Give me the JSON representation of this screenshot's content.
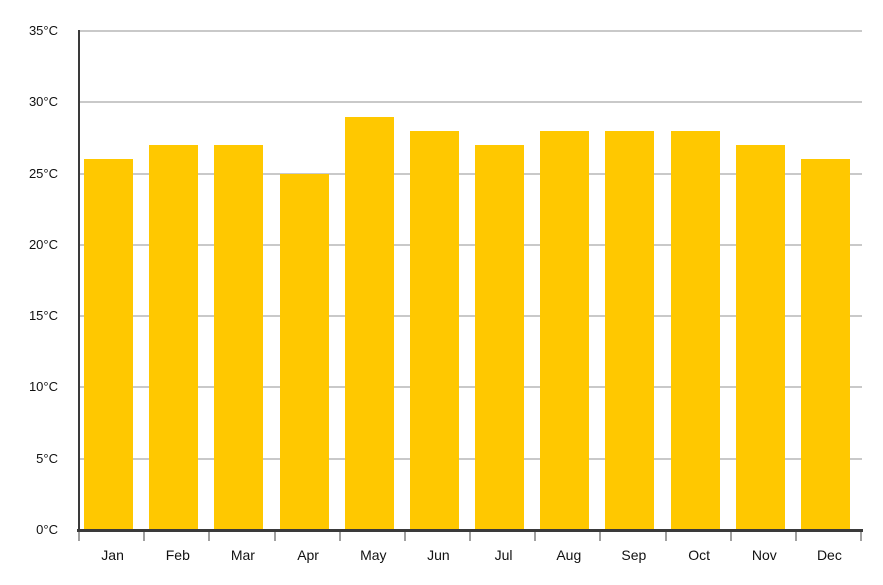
{
  "chart_data": {
    "type": "bar",
    "title": "",
    "xlabel": "",
    "ylabel": "",
    "unit": "°C",
    "categories": [
      "Jan",
      "Feb",
      "Mar",
      "Apr",
      "May",
      "Jun",
      "Jul",
      "Aug",
      "Sep",
      "Oct",
      "Nov",
      "Dec"
    ],
    "values": [
      26,
      27,
      27,
      25,
      29,
      28,
      27,
      28,
      28,
      28,
      27,
      26
    ],
    "ylim": [
      0,
      35
    ],
    "ytick_step": 5,
    "ytick_labels": [
      "0°C",
      "5°C",
      "10°C",
      "15°C",
      "20°C",
      "25°C",
      "30°C",
      "35°C"
    ],
    "grid": true,
    "legend": false
  },
  "colors": {
    "bar": "#FFC800",
    "gridline": "#C9C9C9",
    "axis": "#3A3A3A",
    "tick": "#A0A0A0",
    "label": "#111111",
    "background": "#FFFFFF"
  }
}
